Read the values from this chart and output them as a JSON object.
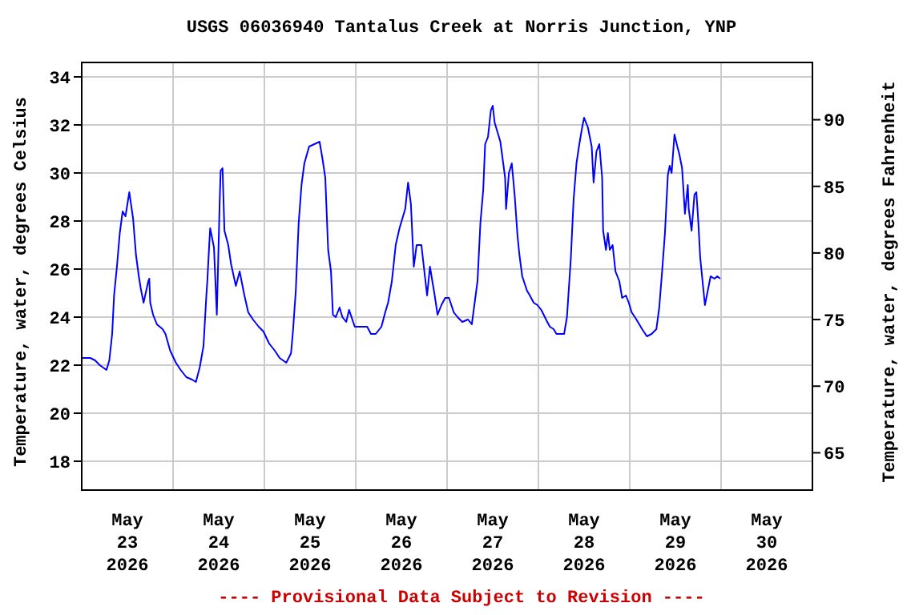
{
  "chart_data": {
    "type": "line",
    "title": "USGS 06036940 Tantalus Creek at Norris Junction, YNP",
    "ylabel": "Temperature, water, degrees Celsius",
    "y2label": "Temperature, water, degrees Fahrenheit",
    "annotations": [
      "---- Provisional Data Subject to Revision ----"
    ],
    "xlim": [
      "2026-05-23T00:00",
      "2026-05-31T00:00"
    ],
    "xticks": [
      {
        "value": "2026-05-23T12:00",
        "label": "May\n23\n2026"
      },
      {
        "value": "2026-05-24T00:00",
        "label": null
      },
      {
        "value": "2026-05-24T12:00",
        "label": "May\n24\n2026"
      },
      {
        "value": "2026-05-25T00:00",
        "label": null
      },
      {
        "value": "2026-05-25T12:00",
        "label": "May\n25\n2026"
      },
      {
        "value": "2026-05-26T00:00",
        "label": null
      },
      {
        "value": "2026-05-26T12:00",
        "label": "May\n26\n2026"
      },
      {
        "value": "2026-05-27T00:00",
        "label": null
      },
      {
        "value": "2026-05-27T12:00",
        "label": "May\n27\n2026"
      },
      {
        "value": "2026-05-28T00:00",
        "label": null
      },
      {
        "value": "2026-05-28T12:00",
        "label": "May\n28\n2026"
      },
      {
        "value": "2026-05-29T00:00",
        "label": null
      },
      {
        "value": "2026-05-29T12:00",
        "label": "May\n29\n2026"
      },
      {
        "value": "2026-05-30T00:00",
        "label": null
      },
      {
        "value": "2026-05-30T12:00",
        "label": "May\n30\n2026"
      }
    ],
    "ylim": [
      16.8,
      34.6
    ],
    "yticks": [
      18,
      20,
      22,
      24,
      26,
      28,
      30,
      32,
      34
    ],
    "y2lim": [
      62.2,
      94.3
    ],
    "y2ticks": [
      65,
      70,
      75,
      80,
      85,
      90
    ],
    "grid": true,
    "marker": "none",
    "series": [
      {
        "color": "#0000ff",
        "x": [
          "2026-05-23T00:00",
          "2026-05-23T02:15",
          "2026-05-23T03:30",
          "2026-05-23T04:45",
          "2026-05-23T06:30",
          "2026-05-23T07:15",
          "2026-05-23T08:00",
          "2026-05-23T08:30",
          "2026-05-23T09:15",
          "2026-05-23T10:00",
          "2026-05-23T10:45",
          "2026-05-23T11:30",
          "2026-05-23T12:00",
          "2026-05-23T12:30",
          "2026-05-23T13:30",
          "2026-05-23T14:15",
          "2026-05-23T15:00",
          "2026-05-23T15:30",
          "2026-05-23T16:15",
          "2026-05-23T17:30",
          "2026-05-23T17:45",
          "2026-05-23T18:00",
          "2026-05-23T18:45",
          "2026-05-23T19:45",
          "2026-05-23T21:15",
          "2026-05-23T22:00",
          "2026-05-23T23:15",
          "2026-05-24T00:45",
          "2026-05-24T02:00",
          "2026-05-24T03:30",
          "2026-05-24T05:00",
          "2026-05-24T06:00",
          "2026-05-24T07:00",
          "2026-05-24T08:00",
          "2026-05-24T08:45",
          "2026-05-24T09:00",
          "2026-05-24T09:30",
          "2026-05-24T09:45",
          "2026-05-24T10:45",
          "2026-05-24T11:30",
          "2026-05-24T12:15",
          "2026-05-24T12:30",
          "2026-05-24T13:00",
          "2026-05-24T13:30",
          "2026-05-24T14:30",
          "2026-05-24T15:15",
          "2026-05-24T16:30",
          "2026-05-24T17:30",
          "2026-05-24T18:45",
          "2026-05-24T19:45",
          "2026-05-24T21:00",
          "2026-05-24T22:30",
          "2026-05-24T23:45",
          "2026-05-25T01:15",
          "2026-05-25T02:45",
          "2026-05-25T04:00",
          "2026-05-25T05:45",
          "2026-05-25T07:00",
          "2026-05-25T07:30",
          "2026-05-25T08:15",
          "2026-05-25T09:00",
          "2026-05-25T09:45",
          "2026-05-25T10:30",
          "2026-05-25T11:45",
          "2026-05-25T14:30",
          "2026-05-25T15:15",
          "2026-05-25T16:00",
          "2026-05-25T16:45",
          "2026-05-25T17:30",
          "2026-05-25T18:00",
          "2026-05-25T18:45",
          "2026-05-25T19:45",
          "2026-05-25T20:30",
          "2026-05-25T21:30",
          "2026-05-25T22:15",
          "2026-05-25T23:45",
          "2026-05-26T01:00",
          "2026-05-26T03:00",
          "2026-05-26T04:00",
          "2026-05-26T05:15",
          "2026-05-26T06:45",
          "2026-05-26T07:45",
          "2026-05-26T08:30",
          "2026-05-26T09:30",
          "2026-05-26T10:30",
          "2026-05-26T11:30",
          "2026-05-26T13:00",
          "2026-05-26T13:45",
          "2026-05-26T14:30",
          "2026-05-26T15:15",
          "2026-05-26T16:00",
          "2026-05-26T17:15",
          "2026-05-26T18:45",
          "2026-05-26T19:30",
          "2026-05-26T20:45",
          "2026-05-26T21:30",
          "2026-05-26T22:30",
          "2026-05-26T23:30",
          "2026-05-27T00:30",
          "2026-05-27T01:45",
          "2026-05-27T02:45",
          "2026-05-27T04:00",
          "2026-05-27T05:30",
          "2026-05-27T06:30",
          "2026-05-27T07:15",
          "2026-05-27T08:00",
          "2026-05-27T08:45",
          "2026-05-27T09:30",
          "2026-05-27T10:00",
          "2026-05-27T10:45",
          "2026-05-27T11:30",
          "2026-05-27T12:00",
          "2026-05-27T12:30",
          "2026-05-27T14:00",
          "2026-05-27T15:15",
          "2026-05-27T15:30",
          "2026-05-27T16:15",
          "2026-05-27T17:00",
          "2026-05-27T17:45",
          "2026-05-27T18:30",
          "2026-05-27T19:00",
          "2026-05-27T19:45",
          "2026-05-27T21:00",
          "2026-05-27T21:45",
          "2026-05-27T22:45",
          "2026-05-27T23:45",
          "2026-05-28T00:45",
          "2026-05-28T02:00",
          "2026-05-28T03:00",
          "2026-05-28T04:00",
          "2026-05-28T04:45",
          "2026-05-28T06:45",
          "2026-05-28T07:30",
          "2026-05-28T08:30",
          "2026-05-28T09:15",
          "2026-05-28T10:00",
          "2026-05-28T10:45",
          "2026-05-28T11:30",
          "2026-05-28T12:00",
          "2026-05-28T13:00",
          "2026-05-28T14:00",
          "2026-05-28T14:30",
          "2026-05-28T15:15",
          "2026-05-28T16:00",
          "2026-05-28T16:45",
          "2026-05-28T17:00",
          "2026-05-28T17:45",
          "2026-05-28T18:15",
          "2026-05-28T18:45",
          "2026-05-28T19:30",
          "2026-05-28T20:15",
          "2026-05-28T21:15",
          "2026-05-28T22:00",
          "2026-05-28T23:00",
          "2026-05-28T23:45",
          "2026-05-29T00:30",
          "2026-05-29T01:45",
          "2026-05-29T03:15",
          "2026-05-29T04:30",
          "2026-05-29T05:45",
          "2026-05-29T07:00",
          "2026-05-29T07:45",
          "2026-05-29T08:30",
          "2026-05-29T09:15",
          "2026-05-29T10:00",
          "2026-05-29T10:30",
          "2026-05-29T11:00",
          "2026-05-29T11:45",
          "2026-05-29T12:30",
          "2026-05-29T13:00",
          "2026-05-29T13:45",
          "2026-05-29T14:30",
          "2026-05-29T15:15",
          "2026-05-29T15:30",
          "2026-05-29T16:15",
          "2026-05-29T17:00",
          "2026-05-29T17:30",
          "2026-05-29T18:00",
          "2026-05-29T18:30",
          "2026-05-29T19:00",
          "2026-05-29T19:45",
          "2026-05-29T20:30",
          "2026-05-29T21:15",
          "2026-05-29T22:15",
          "2026-05-29T23:00",
          "2026-05-29T23:45"
        ],
        "values": [
          22.3,
          22.3,
          22.2,
          22.0,
          21.8,
          22.2,
          23.3,
          24.9,
          26.1,
          27.5,
          28.4,
          28.2,
          28.7,
          29.2,
          28.1,
          26.6,
          25.7,
          25.2,
          24.6,
          25.5,
          25.6,
          24.6,
          24.1,
          23.7,
          23.5,
          23.3,
          22.6,
          22.1,
          21.8,
          21.5,
          21.4,
          21.3,
          21.9,
          22.8,
          24.9,
          25.5,
          27.0,
          27.7,
          26.9,
          24.1,
          28.8,
          30.1,
          30.2,
          27.6,
          27.0,
          26.2,
          25.3,
          25.9,
          24.9,
          24.2,
          23.9,
          23.6,
          23.4,
          22.9,
          22.6,
          22.3,
          22.1,
          22.5,
          23.4,
          25.1,
          27.9,
          29.5,
          30.4,
          31.1,
          31.3,
          30.6,
          29.8,
          26.8,
          25.9,
          24.1,
          24.0,
          24.4,
          24.0,
          23.8,
          24.3,
          23.6,
          23.6,
          23.6,
          23.3,
          23.3,
          23.6,
          24.2,
          24.6,
          25.5,
          27.0,
          27.7,
          28.5,
          29.6,
          28.7,
          26.1,
          27.0,
          27.0,
          24.9,
          26.1,
          24.9,
          24.1,
          24.5,
          24.8,
          24.8,
          24.2,
          24.0,
          23.8,
          23.9,
          23.7,
          24.6,
          25.5,
          27.9,
          29.3,
          31.2,
          31.5,
          32.6,
          32.8,
          32.1,
          31.3,
          29.8,
          28.5,
          30.0,
          30.4,
          29.1,
          27.4,
          26.6,
          25.7,
          25.1,
          24.9,
          24.6,
          24.5,
          24.3,
          23.9,
          23.6,
          23.5,
          23.3,
          23.3,
          24.0,
          26.4,
          28.9,
          30.4,
          31.2,
          31.9,
          32.3,
          31.9,
          31.1,
          29.6,
          30.9,
          31.2,
          29.8,
          27.6,
          26.8,
          27.5,
          26.8,
          27.0,
          25.9,
          25.5,
          24.8,
          24.9,
          24.6,
          24.2,
          23.9,
          23.5,
          23.2,
          23.3,
          23.5,
          24.4,
          25.9,
          27.5,
          29.9,
          30.3,
          30.0,
          31.6,
          31.1,
          30.8,
          30.2,
          28.3,
          29.5,
          28.5,
          27.6,
          29.1,
          29.2,
          28.0,
          26.5,
          25.7,
          24.5,
          25.1,
          25.7,
          25.6,
          25.7,
          25.6
        ]
      }
    ]
  }
}
